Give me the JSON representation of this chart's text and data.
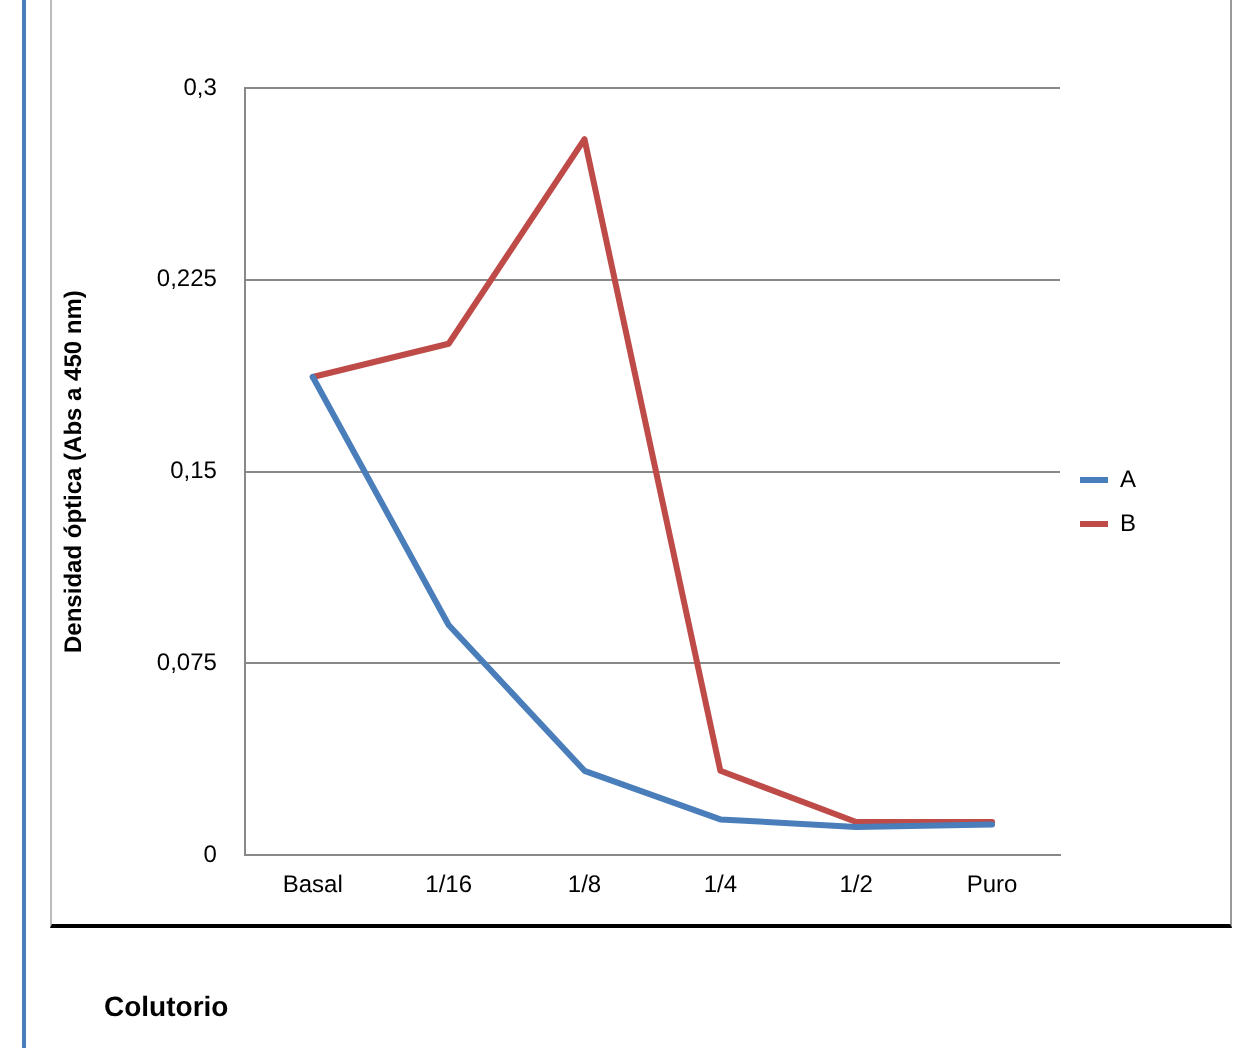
{
  "chart_data": {
    "type": "line",
    "ylabel": "Densidad óptica (Abs a 450 nm)",
    "xlabel": "Colutorio",
    "categories": [
      "Basal",
      "1/16",
      "1/8",
      "1/4",
      "1/2",
      "Puro"
    ],
    "series": [
      {
        "name": "A",
        "color": "#4a7ebb",
        "values": [
          0.187,
          0.09,
          0.033,
          0.014,
          0.011,
          0.012
        ]
      },
      {
        "name": "B",
        "color": "#be4b48",
        "values": [
          0.187,
          0.2,
          0.28,
          0.033,
          0.013,
          0.013
        ]
      }
    ],
    "ylim": [
      0,
      0.3
    ],
    "yticks": [
      {
        "value": 0,
        "label": "0"
      },
      {
        "value": 0.075,
        "label": "0,075"
      },
      {
        "value": 0.15,
        "label": "0,15"
      },
      {
        "value": 0.225,
        "label": "0,225"
      },
      {
        "value": 0.3,
        "label": "0,3"
      }
    ],
    "grid": "y",
    "legend": "right",
    "marker": "none",
    "line_style": "solid"
  }
}
